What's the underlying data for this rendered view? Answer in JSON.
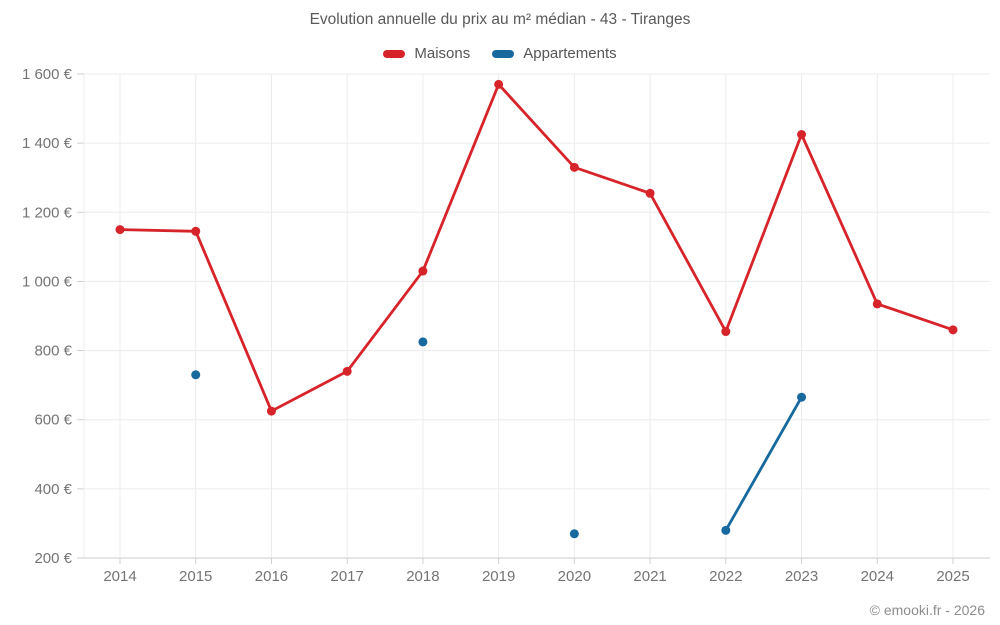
{
  "title": "Evolution annuelle du prix au m² médian - 43 - Tiranges",
  "watermark": "© emooki.fr - 2026",
  "colors": {
    "maisons": "#d7232a",
    "appartements": "#17699e",
    "gridline": "#ececec",
    "axis_line": "#d6d6d6",
    "tick": "#cfcfcf",
    "tick_text": "#747474"
  },
  "chart_data": {
    "type": "line",
    "title": "Evolution annuelle du prix au m² médian - 43 - Tiranges",
    "x": [
      2014,
      2015,
      2016,
      2017,
      2018,
      2019,
      2020,
      2021,
      2022,
      2023,
      2024,
      2025
    ],
    "series": [
      {
        "name": "Maisons",
        "color": "#d7232a",
        "values": [
          1150,
          1145,
          625,
          740,
          1030,
          1570,
          1330,
          1255,
          855,
          1425,
          935,
          860
        ]
      },
      {
        "name": "Appartements",
        "color": "#17699e",
        "values": [
          null,
          730,
          null,
          null,
          825,
          null,
          270,
          null,
          280,
          665,
          null,
          null
        ]
      }
    ],
    "ylim": [
      200,
      1600
    ],
    "yticks": [
      200,
      400,
      600,
      800,
      1000,
      1200,
      1400,
      1600
    ],
    "ytick_suffix": " €",
    "xlabel": "",
    "ylabel": "",
    "grid": true,
    "legend_position": "top"
  }
}
